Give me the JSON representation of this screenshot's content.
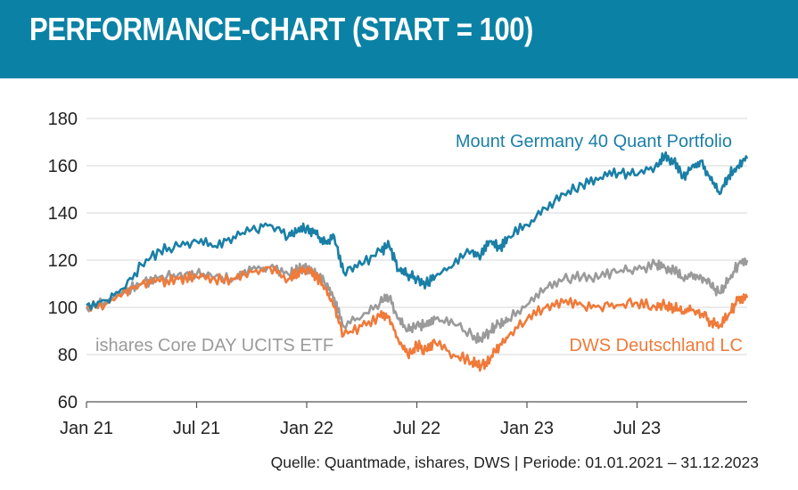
{
  "header": {
    "title": "PERFORMANCE-CHART (START = 100)"
  },
  "footer": {
    "source": "Quelle: Quantmade, ishares, DWS | Periode: 01.01.2021 – 31.12.2023"
  },
  "colors": {
    "header_bg": "#0b82a5",
    "mount": "#1a7fa6",
    "ishares": "#9a9a9a",
    "dws": "#ef7a3a",
    "grid": "#d7d7d7"
  },
  "chart_data": {
    "type": "line",
    "title": "PERFORMANCE-CHART (START = 100)",
    "xlabel": "",
    "ylabel": "",
    "ylim": [
      60,
      180
    ],
    "yticks": [
      60,
      80,
      100,
      120,
      140,
      160,
      180
    ],
    "xlim": [
      0,
      36
    ],
    "xtick_labels": [
      "Jan 21",
      "Jul 21",
      "Jan 22",
      "Jul 22",
      "Jan 23",
      "Jul 23"
    ],
    "xtick_positions": [
      0,
      6,
      12,
      18,
      24,
      30
    ],
    "grid": true,
    "series": [
      {
        "name": "Mount Germany 40 Quant Portfolio",
        "color": "#1a7fa6",
        "x": [
          0,
          1,
          2,
          3,
          4,
          5,
          6,
          7,
          8,
          9,
          10,
          11,
          11.5,
          12,
          12.5,
          13,
          13.5,
          14,
          15,
          16,
          16.5,
          17,
          17.5,
          18,
          18.5,
          19,
          20,
          21,
          21.5,
          22,
          22.5,
          23,
          24,
          25,
          26,
          27,
          28,
          29,
          30,
          31,
          31.5,
          32,
          32.5,
          33,
          33.5,
          34,
          34.5,
          35,
          35.5,
          36
        ],
        "values": [
          101,
          103,
          108,
          118,
          124,
          126,
          128,
          126,
          130,
          133,
          135,
          130,
          132,
          134,
          131,
          127,
          130,
          115,
          118,
          124,
          126,
          116,
          114,
          112,
          110,
          113,
          118,
          124,
          122,
          128,
          125,
          130,
          135,
          142,
          148,
          152,
          155,
          157,
          156,
          160,
          164,
          162,
          155,
          160,
          162,
          154,
          148,
          156,
          160,
          163
        ]
      },
      {
        "name": "ishares Core DAY UCITS ETF",
        "color": "#9a9a9a",
        "x": [
          0,
          1,
          2,
          3,
          4,
          5,
          6,
          7,
          8,
          9,
          10,
          11,
          11.5,
          12,
          12.5,
          13,
          13.5,
          14,
          15,
          16,
          16.5,
          17,
          17.5,
          18,
          18.5,
          19,
          20,
          21,
          21.5,
          22,
          22.5,
          23,
          24,
          25,
          26,
          27,
          28,
          29,
          30,
          31,
          31.5,
          32,
          32.5,
          33,
          33.5,
          34,
          34.5,
          35,
          35.5,
          36
        ],
        "values": [
          100,
          102,
          107,
          110,
          113,
          114,
          114,
          113,
          112,
          116,
          117,
          114,
          116,
          117,
          114,
          110,
          104,
          92,
          96,
          102,
          104,
          95,
          90,
          93,
          92,
          95,
          93,
          88,
          86,
          90,
          93,
          95,
          101,
          108,
          112,
          113,
          113,
          115,
          116,
          118,
          117,
          116,
          112,
          114,
          113,
          109,
          106,
          112,
          118,
          120
        ]
      },
      {
        "name": "DWS Deutschland LC",
        "color": "#ef7a3a",
        "x": [
          0,
          1,
          2,
          3,
          4,
          5,
          6,
          7,
          8,
          9,
          10,
          11,
          11.5,
          12,
          12.5,
          13,
          13.5,
          14,
          15,
          16,
          16.5,
          17,
          17.5,
          18,
          18.5,
          19,
          20,
          21,
          21.5,
          22,
          22.5,
          23,
          24,
          25,
          26,
          27,
          28,
          29,
          30,
          31,
          31.5,
          32,
          32.5,
          33,
          33.5,
          34,
          34.5,
          35,
          35.5,
          36
        ],
        "values": [
          100,
          101,
          106,
          110,
          111,
          112,
          113,
          112,
          112,
          115,
          117,
          112,
          115,
          116,
          113,
          108,
          100,
          88,
          92,
          96,
          96,
          86,
          80,
          84,
          82,
          85,
          80,
          77,
          75,
          78,
          84,
          88,
          95,
          100,
          102,
          101,
          100,
          101,
          102,
          100,
          101,
          100,
          98,
          99,
          97,
          94,
          92,
          97,
          103,
          104
        ]
      }
    ],
    "annotations": [
      {
        "text": "Mount Germany 40 Quant Portfolio",
        "series": 0
      },
      {
        "text": "ishares Core DAY UCITS ETF",
        "series": 1
      },
      {
        "text": "DWS Deutschland LC",
        "series": 2
      }
    ]
  }
}
